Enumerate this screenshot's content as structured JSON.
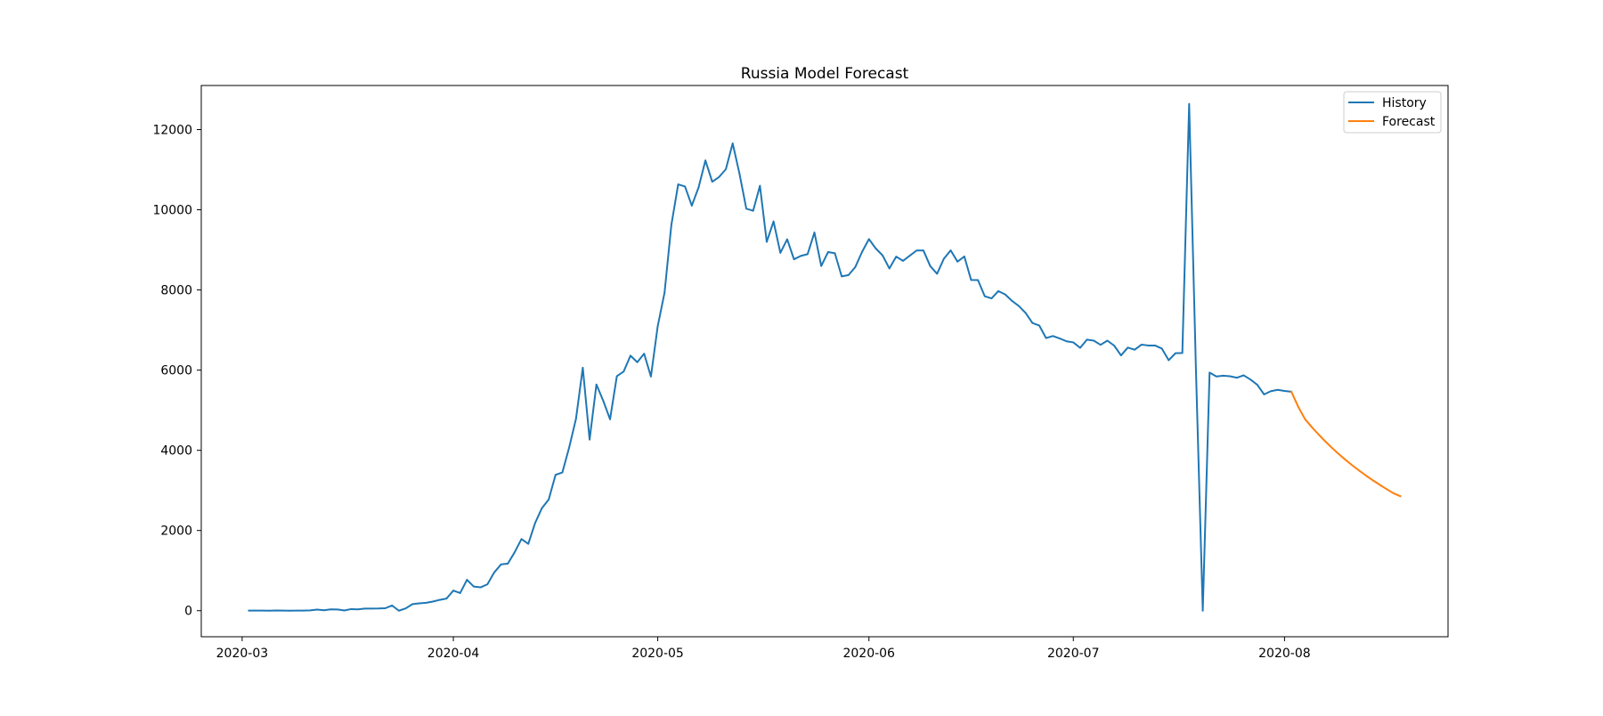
{
  "chart_data": {
    "type": "line",
    "title": "Russia Model Forecast",
    "xlabel": "",
    "ylabel": "",
    "x_type": "date",
    "xlim": [
      "2020-02-24",
      "2020-08-25"
    ],
    "ylim": [
      -650,
      13100
    ],
    "x_ticks": [
      "2020-03",
      "2020-04",
      "2020-05",
      "2020-06",
      "2020-07",
      "2020-08"
    ],
    "x_tick_dates": [
      "2020-03-01",
      "2020-04-01",
      "2020-05-01",
      "2020-06-01",
      "2020-07-01",
      "2020-08-01"
    ],
    "y_ticks": [
      0,
      2000,
      4000,
      6000,
      8000,
      10000,
      12000
    ],
    "grid": false,
    "legend": {
      "position": "top-right",
      "entries": [
        {
          "name": "History",
          "color": "#1f77b4"
        },
        {
          "name": "Forecast",
          "color": "#ff7f0e"
        }
      ]
    },
    "series": [
      {
        "name": "History",
        "color": "#1f77b4",
        "points": [
          [
            "2020-03-02",
            3
          ],
          [
            "2020-03-03",
            2
          ],
          [
            "2020-03-04",
            3
          ],
          [
            "2020-03-05",
            1
          ],
          [
            "2020-03-06",
            6
          ],
          [
            "2020-03-07",
            3
          ],
          [
            "2020-03-08",
            1
          ],
          [
            "2020-03-09",
            3
          ],
          [
            "2020-03-10",
            3
          ],
          [
            "2020-03-11",
            8
          ],
          [
            "2020-03-12",
            28
          ],
          [
            "2020-03-13",
            11
          ],
          [
            "2020-03-14",
            33
          ],
          [
            "2020-03-15",
            30
          ],
          [
            "2020-03-16",
            6
          ],
          [
            "2020-03-17",
            40
          ],
          [
            "2020-03-18",
            33
          ],
          [
            "2020-03-19",
            52
          ],
          [
            "2020-03-20",
            53
          ],
          [
            "2020-03-21",
            54
          ],
          [
            "2020-03-22",
            61
          ],
          [
            "2020-03-23",
            130
          ],
          [
            "2020-03-24",
            0
          ],
          [
            "2020-03-25",
            57
          ],
          [
            "2020-03-26",
            163
          ],
          [
            "2020-03-27",
            182
          ],
          [
            "2020-03-28",
            196
          ],
          [
            "2020-03-29",
            228
          ],
          [
            "2020-03-30",
            270
          ],
          [
            "2020-03-31",
            302
          ],
          [
            "2020-04-01",
            501
          ],
          [
            "2020-04-02",
            440
          ],
          [
            "2020-04-03",
            771
          ],
          [
            "2020-04-04",
            601
          ],
          [
            "2020-04-05",
            582
          ],
          [
            "2020-04-06",
            658
          ],
          [
            "2020-04-07",
            954
          ],
          [
            "2020-04-08",
            1154
          ],
          [
            "2020-04-09",
            1175
          ],
          [
            "2020-04-10",
            1459
          ],
          [
            "2020-04-11",
            1786
          ],
          [
            "2020-04-12",
            1667
          ],
          [
            "2020-04-13",
            2186
          ],
          [
            "2020-04-14",
            2558
          ],
          [
            "2020-04-15",
            2774
          ],
          [
            "2020-04-16",
            3388
          ],
          [
            "2020-04-17",
            3448
          ],
          [
            "2020-04-18",
            4070
          ],
          [
            "2020-04-19",
            4785
          ],
          [
            "2020-04-20",
            6060
          ],
          [
            "2020-04-21",
            4268
          ],
          [
            "2020-04-22",
            5642
          ],
          [
            "2020-04-23",
            5236
          ],
          [
            "2020-04-24",
            4774
          ],
          [
            "2020-04-25",
            5849
          ],
          [
            "2020-04-26",
            5966
          ],
          [
            "2020-04-27",
            6361
          ],
          [
            "2020-04-28",
            6198
          ],
          [
            "2020-04-29",
            6411
          ],
          [
            "2020-04-30",
            5841
          ],
          [
            "2020-05-01",
            7099
          ],
          [
            "2020-05-02",
            7933
          ],
          [
            "2020-05-03",
            9623
          ],
          [
            "2020-05-04",
            10633
          ],
          [
            "2020-05-05",
            10581
          ],
          [
            "2020-05-06",
            10102
          ],
          [
            "2020-05-07",
            10559
          ],
          [
            "2020-05-08",
            11231
          ],
          [
            "2020-05-09",
            10699
          ],
          [
            "2020-05-10",
            10817
          ],
          [
            "2020-05-11",
            11012
          ],
          [
            "2020-05-12",
            11656
          ],
          [
            "2020-05-13",
            10899
          ],
          [
            "2020-05-14",
            10028
          ],
          [
            "2020-05-15",
            9974
          ],
          [
            "2020-05-16",
            10598
          ],
          [
            "2020-05-17",
            9200
          ],
          [
            "2020-05-18",
            9709
          ],
          [
            "2020-05-19",
            8926
          ],
          [
            "2020-05-20",
            9263
          ],
          [
            "2020-05-21",
            8764
          ],
          [
            "2020-05-22",
            8849
          ],
          [
            "2020-05-23",
            8894
          ],
          [
            "2020-05-24",
            9434
          ],
          [
            "2020-05-25",
            8599
          ],
          [
            "2020-05-26",
            8946
          ],
          [
            "2020-05-27",
            8915
          ],
          [
            "2020-05-28",
            8338
          ],
          [
            "2020-05-29",
            8371
          ],
          [
            "2020-05-30",
            8572
          ],
          [
            "2020-05-31",
            8952
          ],
          [
            "2020-06-01",
            9268
          ],
          [
            "2020-06-02",
            9035
          ],
          [
            "2020-06-03",
            8863
          ],
          [
            "2020-06-04",
            8536
          ],
          [
            "2020-06-05",
            8831
          ],
          [
            "2020-06-06",
            8726
          ],
          [
            "2020-06-07",
            8855
          ],
          [
            "2020-06-08",
            8985
          ],
          [
            "2020-06-09",
            8984
          ],
          [
            "2020-06-10",
            8595
          ],
          [
            "2020-06-11",
            8404
          ],
          [
            "2020-06-12",
            8779
          ],
          [
            "2020-06-13",
            8987
          ],
          [
            "2020-06-14",
            8706
          ],
          [
            "2020-06-15",
            8835
          ],
          [
            "2020-06-16",
            8248
          ],
          [
            "2020-06-17",
            8246
          ],
          [
            "2020-06-18",
            7843
          ],
          [
            "2020-06-19",
            7790
          ],
          [
            "2020-06-20",
            7972
          ],
          [
            "2020-06-21",
            7889
          ],
          [
            "2020-06-22",
            7728
          ],
          [
            "2020-06-23",
            7600
          ],
          [
            "2020-06-24",
            7425
          ],
          [
            "2020-06-25",
            7176
          ],
          [
            "2020-06-26",
            7113
          ],
          [
            "2020-06-27",
            6800
          ],
          [
            "2020-06-28",
            6852
          ],
          [
            "2020-06-29",
            6791
          ],
          [
            "2020-06-30",
            6719
          ],
          [
            "2020-07-01",
            6693
          ],
          [
            "2020-07-02",
            6556
          ],
          [
            "2020-07-03",
            6760
          ],
          [
            "2020-07-04",
            6736
          ],
          [
            "2020-07-05",
            6632
          ],
          [
            "2020-07-06",
            6736
          ],
          [
            "2020-07-07",
            6611
          ],
          [
            "2020-07-08",
            6368
          ],
          [
            "2020-07-09",
            6562
          ],
          [
            "2020-07-10",
            6509
          ],
          [
            "2020-07-11",
            6635
          ],
          [
            "2020-07-12",
            6615
          ],
          [
            "2020-07-13",
            6615
          ],
          [
            "2020-07-14",
            6537
          ],
          [
            "2020-07-15",
            6248
          ],
          [
            "2020-07-16",
            6422
          ],
          [
            "2020-07-17",
            6428
          ],
          [
            "2020-07-18",
            12640
          ],
          [
            "2020-07-19",
            6000
          ],
          [
            "2020-07-20",
            0
          ],
          [
            "2020-07-21",
            5940
          ],
          [
            "2020-07-22",
            5842
          ],
          [
            "2020-07-23",
            5862
          ],
          [
            "2020-07-24",
            5848
          ],
          [
            "2020-07-25",
            5811
          ],
          [
            "2020-07-26",
            5871
          ],
          [
            "2020-07-27",
            5765
          ],
          [
            "2020-07-28",
            5635
          ],
          [
            "2020-07-29",
            5395
          ],
          [
            "2020-07-30",
            5475
          ],
          [
            "2020-07-31",
            5509
          ],
          [
            "2020-08-01",
            5482
          ],
          [
            "2020-08-02",
            5462
          ]
        ]
      },
      {
        "name": "Forecast",
        "color": "#ff7f0e",
        "points": [
          [
            "2020-08-02",
            5462
          ],
          [
            "2020-08-03",
            5090
          ],
          [
            "2020-08-04",
            4780
          ],
          [
            "2020-08-05",
            4580
          ],
          [
            "2020-08-06",
            4395
          ],
          [
            "2020-08-07",
            4220
          ],
          [
            "2020-08-08",
            4055
          ],
          [
            "2020-08-09",
            3900
          ],
          [
            "2020-08-10",
            3755
          ],
          [
            "2020-08-11",
            3618
          ],
          [
            "2020-08-12",
            3488
          ],
          [
            "2020-08-13",
            3365
          ],
          [
            "2020-08-14",
            3248
          ],
          [
            "2020-08-15",
            3137
          ],
          [
            "2020-08-16",
            3030
          ],
          [
            "2020-08-17",
            2928
          ],
          [
            "2020-08-18",
            2855
          ]
        ]
      }
    ]
  }
}
